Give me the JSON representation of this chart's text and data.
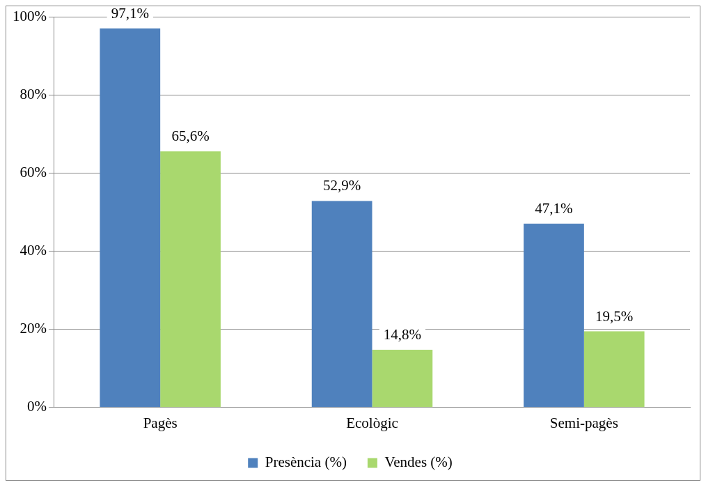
{
  "chart_data": {
    "type": "bar",
    "categories": [
      "Pagès",
      "Ecològic",
      "Semi-pagès"
    ],
    "series": [
      {
        "name": "Presència (%)",
        "color": "#4f81bd",
        "values": [
          97.1,
          52.9,
          47.1
        ],
        "value_labels": [
          "97,1%",
          "52,9%",
          "47,1%"
        ]
      },
      {
        "name": "Vendes (%)",
        "color": "#a9d86e",
        "values": [
          65.6,
          14.8,
          19.5
        ],
        "value_labels": [
          "65,6%",
          "14,8%",
          "19,5%"
        ]
      }
    ],
    "ylim": [
      0,
      100
    ],
    "yticks": [
      {
        "value": 0,
        "label": "0%"
      },
      {
        "value": 20,
        "label": "20%"
      },
      {
        "value": 40,
        "label": "40%"
      },
      {
        "value": 60,
        "label": "60%"
      },
      {
        "value": 80,
        "label": "80%"
      },
      {
        "value": 100,
        "label": "100%"
      }
    ],
    "grid": "y",
    "legend": "bottom"
  }
}
